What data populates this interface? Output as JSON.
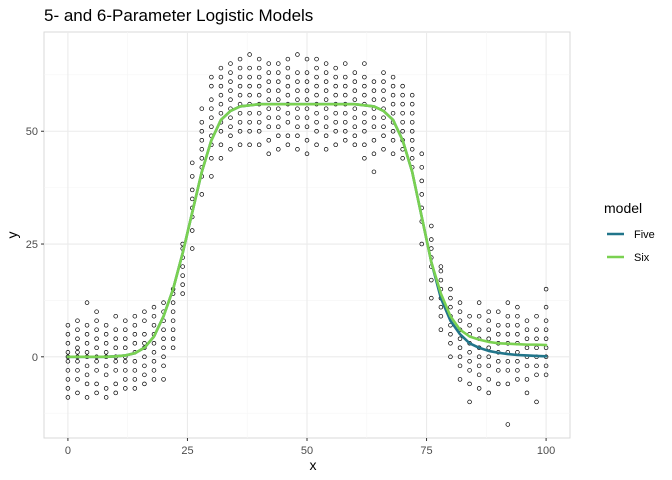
{
  "chart_data": {
    "type": "scatter",
    "title": "5- and 6-Parameter Logistic Models",
    "xlabel": "x",
    "ylabel": "y",
    "xlim": [
      -5,
      105
    ],
    "ylim": [
      -18,
      72
    ],
    "x_ticks": [
      0,
      25,
      50,
      75,
      100
    ],
    "x_tick_labels": [
      "0",
      "25",
      "50",
      "75",
      "100"
    ],
    "y_ticks": [
      0,
      25,
      50
    ],
    "y_tick_labels": [
      "0",
      "25",
      "50"
    ],
    "grid": true,
    "legend": {
      "title": "model",
      "position": "right",
      "entries": [
        {
          "label": "Five",
          "color": "#21758a"
        },
        {
          "label": "Six",
          "color": "#7ad151"
        }
      ]
    },
    "colors": {
      "panel_background": "#ffffff",
      "panel_border": "#d9d9d9",
      "grid_major": "#ebebeb",
      "grid_minor": "#f5f5f5",
      "points": "#000000"
    },
    "points": {
      "x": [
        0,
        2,
        4,
        6,
        8,
        10,
        12,
        14,
        16,
        18,
        20,
        22,
        24,
        26,
        28,
        30,
        32,
        34,
        36,
        38,
        40,
        42,
        44,
        46,
        48,
        50,
        52,
        54,
        56,
        58,
        60,
        62,
        64,
        66,
        68,
        70,
        72,
        74,
        76,
        78,
        80,
        82,
        84,
        86,
        88,
        90,
        92,
        94,
        96,
        98,
        100
      ],
      "y_per_x": [
        [
          -9,
          -7,
          -5,
          -3,
          -1,
          0,
          1,
          3,
          5,
          7
        ],
        [
          -8,
          -5,
          -3,
          -1,
          0,
          1,
          2,
          4,
          6,
          8
        ],
        [
          -9,
          -6,
          -4,
          -2,
          0,
          1,
          3,
          5,
          7,
          12
        ],
        [
          -8,
          -6,
          -3,
          -1,
          0,
          2,
          4,
          6,
          8,
          10
        ],
        [
          -9,
          -7,
          -4,
          -2,
          0,
          1,
          3,
          5,
          7
        ],
        [
          -8,
          -6,
          -3,
          -1,
          0,
          2,
          4,
          6,
          9
        ],
        [
          -7,
          -5,
          -3,
          -1,
          0,
          2,
          4,
          6,
          8
        ],
        [
          -7,
          -5,
          -3,
          -1,
          1,
          3,
          5,
          7,
          9
        ],
        [
          -6,
          -4,
          -2,
          0,
          2,
          3,
          5,
          8,
          10
        ],
        [
          -5,
          -3,
          -1,
          1,
          3,
          5,
          7,
          9,
          11
        ],
        [
          -5,
          -2,
          0,
          2,
          4,
          6,
          8,
          10,
          12
        ],
        [
          2,
          4,
          6,
          8,
          10,
          12,
          14,
          15
        ],
        [
          14,
          16,
          18,
          20,
          22,
          24,
          25
        ],
        [
          24,
          28,
          31,
          33,
          35,
          37,
          40,
          43
        ],
        [
          36,
          40,
          42,
          44,
          46,
          48,
          50,
          52,
          55
        ],
        [
          40,
          44,
          47,
          49,
          51,
          53,
          55,
          57,
          60,
          62
        ],
        [
          44,
          47,
          50,
          52,
          54,
          56,
          58,
          60,
          62,
          64
        ],
        [
          46,
          49,
          51,
          53,
          55,
          57,
          59,
          61,
          63,
          65
        ],
        [
          47,
          50,
          52,
          54,
          56,
          58,
          60,
          62,
          64,
          66
        ],
        [
          47,
          50,
          52,
          54,
          56,
          58,
          60,
          62,
          64,
          67
        ],
        [
          47,
          50,
          52,
          54,
          56,
          58,
          60,
          62,
          64,
          66
        ],
        [
          45,
          48,
          51,
          53,
          55,
          57,
          59,
          61,
          63,
          65
        ],
        [
          46,
          49,
          51,
          53,
          55,
          57,
          59,
          61,
          63,
          65
        ],
        [
          47,
          49,
          52,
          54,
          56,
          58,
          60,
          62,
          64,
          66
        ],
        [
          46,
          49,
          51,
          53,
          55,
          57,
          59,
          61,
          63,
          67
        ],
        [
          45,
          48,
          51,
          53,
          55,
          57,
          59,
          61,
          63,
          66
        ],
        [
          47,
          50,
          52,
          54,
          56,
          58,
          60,
          62,
          64,
          66
        ],
        [
          46,
          49,
          51,
          53,
          55,
          57,
          59,
          61,
          63,
          65
        ],
        [
          47,
          50,
          52,
          54,
          56,
          58,
          60,
          62,
          64
        ],
        [
          48,
          50,
          52,
          54,
          56,
          58,
          60,
          62,
          65
        ],
        [
          47,
          49,
          51,
          53,
          55,
          57,
          59,
          61,
          63
        ],
        [
          44,
          47,
          50,
          52,
          54,
          56,
          58,
          60,
          62,
          65
        ],
        [
          41,
          45,
          48,
          51,
          53,
          55,
          57,
          59,
          61
        ],
        [
          46,
          49,
          51,
          53,
          55,
          57,
          59,
          61,
          63
        ],
        [
          45,
          48,
          50,
          52,
          54,
          56,
          58,
          60,
          62
        ],
        [
          44,
          46,
          48,
          50,
          52,
          54,
          56,
          58,
          60
        ],
        [
          42,
          44,
          46,
          48,
          50,
          52,
          54,
          56,
          58
        ],
        [
          25,
          30,
          33,
          36,
          39,
          42,
          45
        ],
        [
          13,
          17,
          20,
          22,
          24,
          26,
          29
        ],
        [
          6,
          9,
          11,
          13,
          15,
          17,
          19,
          20
        ],
        [
          0,
          3,
          5,
          7,
          9,
          11,
          13,
          15
        ],
        [
          -5,
          -2,
          0,
          2,
          4,
          6,
          8,
          10,
          12
        ],
        [
          -10,
          -6,
          -3,
          -1,
          1,
          3,
          5,
          7,
          9
        ],
        [
          -7,
          -4,
          -2,
          0,
          2,
          4,
          6,
          9,
          12
        ],
        [
          -8,
          -5,
          -2,
          0,
          2,
          4,
          6,
          8,
          10
        ],
        [
          -6,
          -3,
          -1,
          1,
          3,
          5,
          7,
          10
        ],
        [
          -15,
          -6,
          -3,
          -1,
          1,
          3,
          5,
          7,
          9,
          12
        ],
        [
          -5,
          -3,
          -1,
          1,
          3,
          5,
          7,
          9,
          11
        ],
        [
          -8,
          -5,
          -2,
          0,
          2,
          4,
          6,
          8
        ],
        [
          -10,
          -4,
          -2,
          0,
          2,
          4,
          6,
          9
        ],
        [
          -4,
          -2,
          0,
          2,
          4,
          6,
          8,
          11,
          15
        ]
      ]
    },
    "series": [
      {
        "name": "Five",
        "color": "#21758a",
        "x": [
          0,
          2,
          4,
          6,
          8,
          10,
          12,
          14,
          16,
          18,
          20,
          22,
          24,
          26,
          28,
          30,
          32,
          34,
          36,
          40,
          45,
          50,
          55,
          60,
          64,
          66,
          68,
          70,
          72,
          74,
          76,
          78,
          80,
          82,
          84,
          86,
          88,
          90,
          92,
          94,
          96,
          98,
          100
        ],
        "y": [
          0,
          0,
          0,
          0,
          0,
          0.1,
          0.3,
          0.8,
          2,
          4.5,
          9,
          15,
          23,
          32,
          41,
          48,
          52.5,
          54.5,
          55.5,
          56,
          56,
          56,
          56,
          56,
          55.5,
          54.5,
          52.5,
          48,
          41,
          31,
          21,
          13,
          8,
          5,
          3,
          2,
          1.3,
          0.9,
          0.6,
          0.4,
          0.3,
          0.2,
          0.1
        ]
      },
      {
        "name": "Six",
        "color": "#7ad151",
        "x": [
          0,
          2,
          4,
          6,
          8,
          10,
          12,
          14,
          16,
          18,
          20,
          22,
          24,
          26,
          28,
          30,
          32,
          34,
          36,
          40,
          45,
          50,
          55,
          60,
          64,
          66,
          68,
          70,
          72,
          74,
          76,
          78,
          80,
          82,
          84,
          86,
          88,
          90,
          92,
          94,
          96,
          98,
          100
        ],
        "y": [
          0,
          0,
          0,
          0,
          0,
          0.1,
          0.3,
          0.8,
          2,
          4.5,
          9,
          15,
          23,
          32,
          41,
          48,
          52.5,
          54.5,
          55.5,
          56,
          56,
          56,
          56,
          56,
          55.5,
          54.5,
          52.5,
          48,
          41,
          31,
          21,
          14,
          9,
          6,
          4.5,
          3.8,
          3.3,
          3,
          2.9,
          2.8,
          2.7,
          2.7,
          2.6
        ]
      }
    ]
  }
}
